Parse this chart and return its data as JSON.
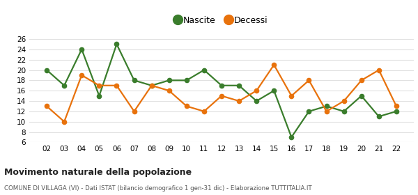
{
  "years": [
    2,
    3,
    4,
    5,
    6,
    7,
    8,
    9,
    10,
    11,
    12,
    13,
    14,
    15,
    16,
    17,
    18,
    19,
    20,
    21,
    22
  ],
  "nascite": [
    20,
    17,
    24,
    15,
    25,
    18,
    17,
    18,
    18,
    20,
    17,
    17,
    14,
    16,
    7,
    12,
    13,
    12,
    15,
    11,
    12
  ],
  "decessi": [
    13,
    10,
    19,
    17,
    17,
    12,
    17,
    16,
    13,
    12,
    15,
    14,
    16,
    21,
    15,
    18,
    12,
    14,
    18,
    20,
    13
  ],
  "nascite_color": "#3a7d2c",
  "decessi_color": "#e8720c",
  "background_color": "#ffffff",
  "grid_color": "#e0e0e0",
  "ylim": [
    6,
    26
  ],
  "yticks": [
    6,
    8,
    10,
    12,
    14,
    16,
    18,
    20,
    22,
    24,
    26
  ],
  "title": "Movimento naturale della popolazione",
  "subtitle": "COMUNE DI VILLAGA (VI) - Dati ISTAT (bilancio demografico 1 gen-31 dic) - Elaborazione TUTTITALIA.IT",
  "legend_labels": [
    "Nascite",
    "Decessi"
  ],
  "marker_size": 4.5,
  "line_width": 1.6
}
